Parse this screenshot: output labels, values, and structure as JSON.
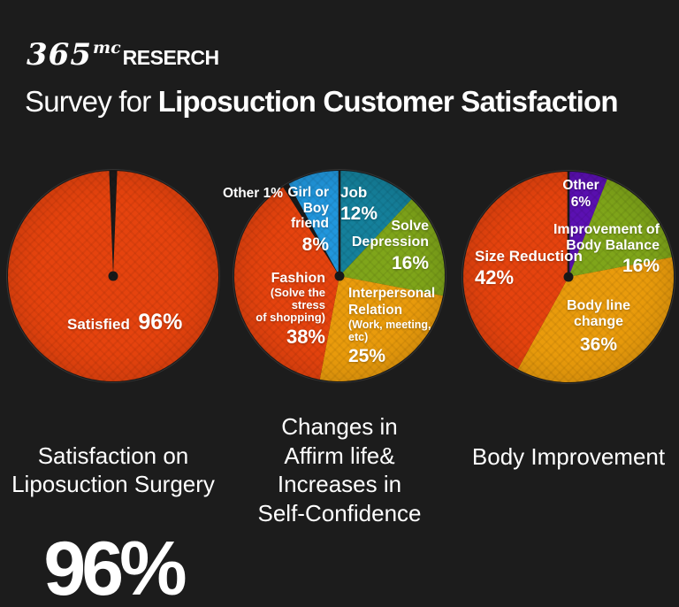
{
  "header": {
    "logo_365": "365",
    "logo_mc": "mc",
    "logo_research": "RESERCH",
    "title_regular": "Survey for ",
    "title_bold": "Liposuction Customer Satisfaction"
  },
  "colors": {
    "background": "#1c1c1c",
    "center_dot": "#191919",
    "red_orange": "#e5430e",
    "amber": "#e99b0c",
    "green": "#7fa51a",
    "teal": "#15809b",
    "blue": "#2196dc",
    "purple": "#5b10b2",
    "text": "#ffffff"
  },
  "chart_data": [
    {
      "type": "pie",
      "title": "Satisfaction on\nLiposuction Surgery",
      "headline": "96%",
      "rotation": -2.2,
      "top_divider": false,
      "slices": [
        {
          "name": "unsatisfied-gap",
          "label": "",
          "pct": "",
          "value": 4,
          "display_angle": 4.4,
          "color": "#1b1b1b"
        },
        {
          "name": "satisfied",
          "label": "Satisfied",
          "pct": "96%",
          "value": 96,
          "display_angle": 355.6,
          "color": "#e5430e"
        }
      ]
    },
    {
      "type": "pie",
      "title": "Changes in\nAffirm life&\nIncreases in\nSelf-Confidence",
      "rotation": 0,
      "top_divider": true,
      "slices": [
        {
          "name": "job",
          "label": "Job",
          "pct": "12%",
          "value": 12,
          "color": "#15809b"
        },
        {
          "name": "solve-depression",
          "label": "Solve\nDepression",
          "pct": "16%",
          "value": 16,
          "color": "#7fa51a"
        },
        {
          "name": "interpersonal-relation",
          "label": "Interpersonal\nRelation",
          "sub": "(Work, meeting,\netc)",
          "pct": "25%",
          "value": 25,
          "color": "#e99b0c"
        },
        {
          "name": "fashion",
          "label": "Fashion",
          "sub": "(Solve the stress\nof shopping)",
          "pct": "38%",
          "value": 38,
          "color": "#e5430e"
        },
        {
          "name": "other",
          "label": "Other",
          "pct": "1%",
          "value": 1,
          "color": "#1b1b1b"
        },
        {
          "name": "girl-or-boyfriend",
          "label": "Girl or\nBoy friend",
          "pct": "8%",
          "value": 8,
          "color": "#2196dc"
        }
      ]
    },
    {
      "type": "pie",
      "title": "Body Improvement",
      "rotation": 0,
      "top_divider": true,
      "slices": [
        {
          "name": "other",
          "label": "Other",
          "pct": "6%",
          "value": 6,
          "color": "#5b10b2"
        },
        {
          "name": "improvement-body-balance",
          "label": "Improvement of\nBody Balance",
          "pct": "16%",
          "value": 16,
          "color": "#7fa51a"
        },
        {
          "name": "body-line-change",
          "label": "Body line\nchange",
          "pct": "36%",
          "value": 36,
          "color": "#e99b0c"
        },
        {
          "name": "size-reduction",
          "label": "Size Reduction",
          "pct": "42%",
          "value": 42,
          "color": "#e5430e"
        }
      ]
    }
  ]
}
